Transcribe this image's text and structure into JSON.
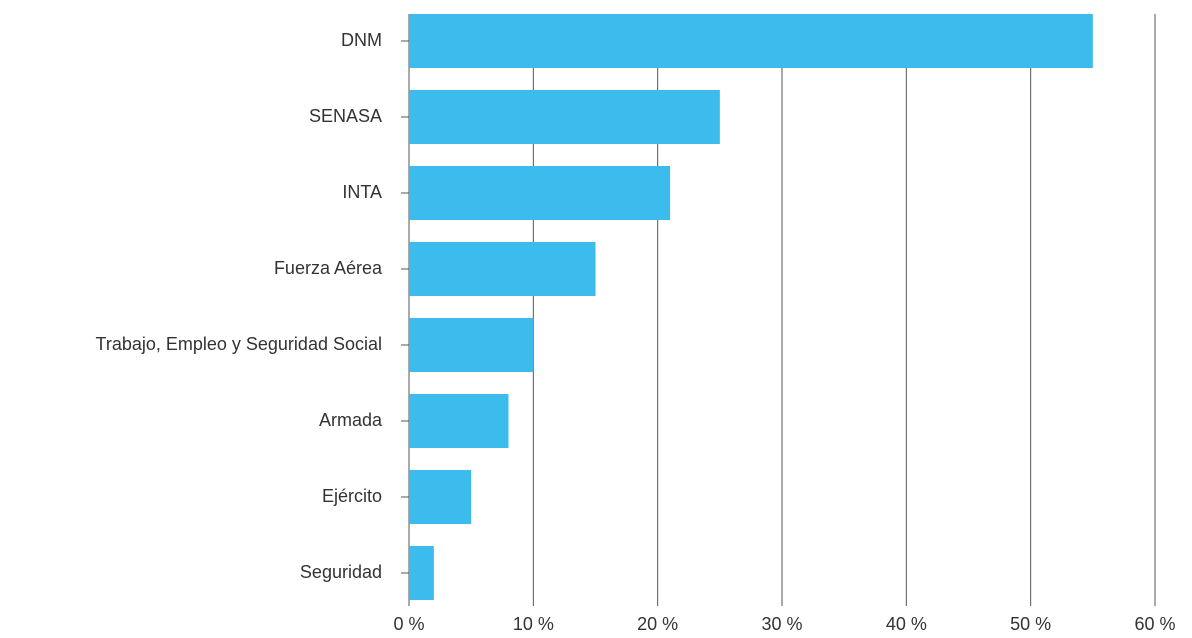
{
  "chart_data": {
    "type": "bar",
    "orientation": "horizontal",
    "categories": [
      "DNM",
      "SENASA",
      "INTA",
      "Fuerza Aérea",
      "Trabajo, Empleo y Seguridad Social",
      "Armada",
      "Ejército",
      "Seguridad"
    ],
    "values": [
      55,
      25,
      21,
      15,
      10,
      8,
      5,
      2
    ],
    "color": "#3bbced",
    "xlim": [
      0,
      60
    ],
    "xticks": [
      {
        "value": 0,
        "label": "0 %"
      },
      {
        "value": 10,
        "label": "10 %"
      },
      {
        "value": 20,
        "label": "20 %"
      },
      {
        "value": 30,
        "label": "30 %"
      },
      {
        "value": 40,
        "label": "40 %"
      },
      {
        "value": 50,
        "label": "50 %"
      },
      {
        "value": 60,
        "label": "60 %"
      }
    ],
    "grid": true
  }
}
